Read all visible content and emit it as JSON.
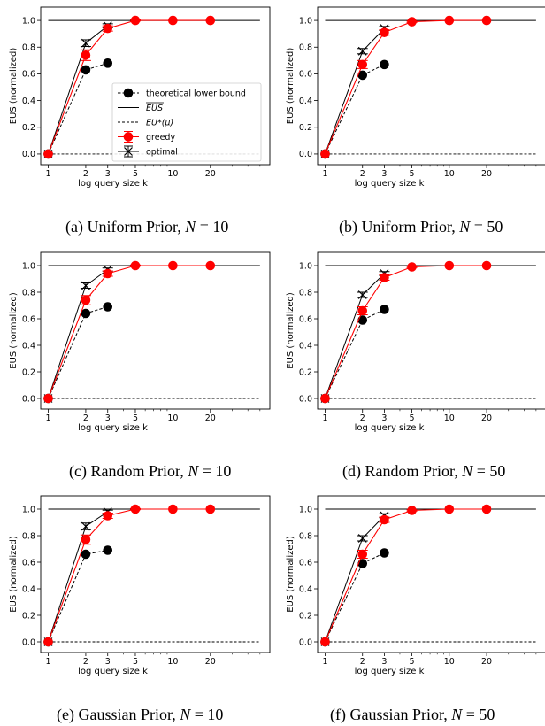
{
  "figure": {
    "legend": {
      "lower_bound": "theoretical lower bound",
      "eus": "EUS",
      "eu_star": "EU*(μ)",
      "greedy": "greedy",
      "optimal": "optimal"
    },
    "colors": {
      "greedy": "#ff0000",
      "optimal": "#000000",
      "lower_bound": "#000000"
    }
  },
  "chart_data": [
    {
      "type": "line",
      "scale_x": "log",
      "caption_name": "Uniform Prior",
      "caption_n": "N = 10",
      "xlabel": "log query size k",
      "ylabel": "EUS (normalized)",
      "ylim": [
        -0.08,
        1.1
      ],
      "x_ticks": [
        1,
        2,
        3,
        5,
        10,
        20
      ],
      "y_ticks": [
        "0.0",
        "0.2",
        "0.4",
        "0.6",
        "0.8",
        "1.0"
      ],
      "legend_placement": "center-right",
      "series": [
        {
          "name": "theoretical lower bound",
          "x": [
            1,
            2,
            3
          ],
          "y": [
            0.0,
            0.63,
            0.68
          ]
        },
        {
          "name": "EUS",
          "x": [
            1,
            50
          ],
          "y": [
            1.0,
            1.0
          ]
        },
        {
          "name": "EU*(μ)",
          "x": [
            1,
            50
          ],
          "y": [
            0.0,
            0.0
          ]
        },
        {
          "name": "greedy",
          "x": [
            1,
            2,
            3,
            5,
            10,
            20
          ],
          "y": [
            0.0,
            0.74,
            0.94,
            1.0,
            1.0,
            1.0
          ],
          "err": [
            0,
            0.04,
            0.02,
            0.005,
            0,
            0
          ]
        },
        {
          "name": "optimal",
          "x": [
            1,
            2,
            3
          ],
          "y": [
            0.0,
            0.83,
            0.96
          ],
          "err": [
            0,
            0.025,
            0.015
          ]
        }
      ]
    },
    {
      "type": "line",
      "scale_x": "log",
      "caption_name": "Uniform Prior",
      "caption_n": "N = 50",
      "xlabel": "log query size k",
      "ylabel": "EUS (normalized)",
      "ylim": [
        -0.08,
        1.1
      ],
      "x_ticks": [
        1,
        2,
        3,
        5,
        10,
        20
      ],
      "y_ticks": [
        "0.0",
        "0.2",
        "0.4",
        "0.6",
        "0.8",
        "1.0"
      ],
      "series": [
        {
          "name": "theoretical lower bound",
          "x": [
            1,
            2,
            3
          ],
          "y": [
            0.0,
            0.59,
            0.67
          ]
        },
        {
          "name": "EUS",
          "x": [
            1,
            50
          ],
          "y": [
            1.0,
            1.0
          ]
        },
        {
          "name": "EU*(μ)",
          "x": [
            1,
            50
          ],
          "y": [
            0.0,
            0.0
          ]
        },
        {
          "name": "greedy",
          "x": [
            1,
            2,
            3,
            5,
            10,
            20
          ],
          "y": [
            0.0,
            0.67,
            0.91,
            0.99,
            1.0,
            1.0
          ],
          "err": [
            0,
            0.03,
            0.02,
            0.005,
            0,
            0
          ]
        },
        {
          "name": "optimal",
          "x": [
            1,
            2,
            3
          ],
          "y": [
            0.0,
            0.77,
            0.94
          ],
          "err": [
            0,
            0.02,
            0.015
          ]
        }
      ]
    },
    {
      "type": "line",
      "scale_x": "log",
      "caption_name": "Random Prior",
      "caption_n": "N = 10",
      "xlabel": "log query size k",
      "ylabel": "EUS (normalized)",
      "ylim": [
        -0.08,
        1.1
      ],
      "x_ticks": [
        1,
        2,
        3,
        5,
        10,
        20
      ],
      "y_ticks": [
        "0.0",
        "0.2",
        "0.4",
        "0.6",
        "0.8",
        "1.0"
      ],
      "series": [
        {
          "name": "theoretical lower bound",
          "x": [
            1,
            2,
            3
          ],
          "y": [
            0.0,
            0.64,
            0.69
          ]
        },
        {
          "name": "EUS",
          "x": [
            1,
            50
          ],
          "y": [
            1.0,
            1.0
          ]
        },
        {
          "name": "EU*(μ)",
          "x": [
            1,
            50
          ],
          "y": [
            0.0,
            0.0
          ]
        },
        {
          "name": "greedy",
          "x": [
            1,
            2,
            3,
            5,
            10,
            20
          ],
          "y": [
            0.0,
            0.74,
            0.94,
            1.0,
            1.0,
            1.0
          ],
          "err": [
            0,
            0.035,
            0.02,
            0.005,
            0,
            0
          ]
        },
        {
          "name": "optimal",
          "x": [
            1,
            2,
            3
          ],
          "y": [
            0.0,
            0.85,
            0.97
          ],
          "err": [
            0,
            0.02,
            0.012
          ]
        }
      ]
    },
    {
      "type": "line",
      "scale_x": "log",
      "caption_name": "Random Prior",
      "caption_n": "N = 50",
      "xlabel": "log query size k",
      "ylabel": "EUS (normalized)",
      "ylim": [
        -0.08,
        1.1
      ],
      "x_ticks": [
        1,
        2,
        3,
        5,
        10,
        20
      ],
      "y_ticks": [
        "0.0",
        "0.2",
        "0.4",
        "0.6",
        "0.8",
        "1.0"
      ],
      "series": [
        {
          "name": "theoretical lower bound",
          "x": [
            1,
            2,
            3
          ],
          "y": [
            0.0,
            0.59,
            0.67
          ]
        },
        {
          "name": "EUS",
          "x": [
            1,
            50
          ],
          "y": [
            1.0,
            1.0
          ]
        },
        {
          "name": "EU*(μ)",
          "x": [
            1,
            50
          ],
          "y": [
            0.0,
            0.0
          ]
        },
        {
          "name": "greedy",
          "x": [
            1,
            2,
            3,
            5,
            10,
            20
          ],
          "y": [
            0.0,
            0.66,
            0.91,
            0.99,
            1.0,
            1.0
          ],
          "err": [
            0,
            0.03,
            0.02,
            0.005,
            0,
            0
          ]
        },
        {
          "name": "optimal",
          "x": [
            1,
            2,
            3
          ],
          "y": [
            0.0,
            0.78,
            0.94
          ],
          "err": [
            0,
            0.02,
            0.015
          ]
        }
      ]
    },
    {
      "type": "line",
      "scale_x": "log",
      "caption_name": "Gaussian Prior",
      "caption_n": "N = 10",
      "xlabel": "log query size k",
      "ylabel": "EUS (normalized)",
      "ylim": [
        -0.08,
        1.1
      ],
      "x_ticks": [
        1,
        2,
        3,
        5,
        10,
        20
      ],
      "y_ticks": [
        "0.0",
        "0.2",
        "0.4",
        "0.6",
        "0.8",
        "1.0"
      ],
      "series": [
        {
          "name": "theoretical lower bound",
          "x": [
            1,
            2,
            3
          ],
          "y": [
            0.0,
            0.66,
            0.69
          ]
        },
        {
          "name": "EUS",
          "x": [
            1,
            50
          ],
          "y": [
            1.0,
            1.0
          ]
        },
        {
          "name": "EU*(μ)",
          "x": [
            1,
            50
          ],
          "y": [
            0.0,
            0.0
          ]
        },
        {
          "name": "greedy",
          "x": [
            1,
            2,
            3,
            5,
            10,
            20
          ],
          "y": [
            0.0,
            0.77,
            0.95,
            1.0,
            1.0,
            1.0
          ],
          "err": [
            0,
            0.035,
            0.02,
            0.005,
            0,
            0
          ]
        },
        {
          "name": "optimal",
          "x": [
            1,
            2,
            3
          ],
          "y": [
            0.0,
            0.87,
            0.98
          ],
          "err": [
            0,
            0.025,
            0.012
          ]
        }
      ]
    },
    {
      "type": "line",
      "scale_x": "log",
      "caption_name": "Gaussian Prior",
      "caption_n": "N = 50",
      "xlabel": "log query size k",
      "ylabel": "EUS (normalized)",
      "ylim": [
        -0.08,
        1.1
      ],
      "x_ticks": [
        1,
        2,
        3,
        5,
        10,
        20
      ],
      "y_ticks": [
        "0.0",
        "0.2",
        "0.4",
        "0.6",
        "0.8",
        "1.0"
      ],
      "series": [
        {
          "name": "theoretical lower bound",
          "x": [
            1,
            2,
            3
          ],
          "y": [
            0.0,
            0.59,
            0.67
          ]
        },
        {
          "name": "EUS",
          "x": [
            1,
            50
          ],
          "y": [
            1.0,
            1.0
          ]
        },
        {
          "name": "EU*(μ)",
          "x": [
            1,
            50
          ],
          "y": [
            0.0,
            0.0
          ]
        },
        {
          "name": "greedy",
          "x": [
            1,
            2,
            3,
            5,
            10,
            20
          ],
          "y": [
            0.0,
            0.66,
            0.92,
            0.99,
            1.0,
            1.0
          ],
          "err": [
            0,
            0.03,
            0.02,
            0.005,
            0,
            0
          ]
        },
        {
          "name": "optimal",
          "x": [
            1,
            2,
            3
          ],
          "y": [
            0.0,
            0.78,
            0.95
          ],
          "err": [
            0,
            0.02,
            0.015
          ]
        }
      ]
    }
  ],
  "captions": [
    {
      "label": "(a) Uniform Prior, ",
      "math": "N",
      "rest": " = 10"
    },
    {
      "label": "(b) Uniform Prior, ",
      "math": "N",
      "rest": " = 50"
    },
    {
      "label": "(c) Random Prior, ",
      "math": "N",
      "rest": " = 10"
    },
    {
      "label": "(d) Random Prior, ",
      "math": "N",
      "rest": " = 50"
    },
    {
      "label": "(e) Gaussian Prior, ",
      "math": "N",
      "rest": " = 10"
    },
    {
      "label": "(f) Gaussian Prior, ",
      "math": "N",
      "rest": " = 50"
    }
  ]
}
